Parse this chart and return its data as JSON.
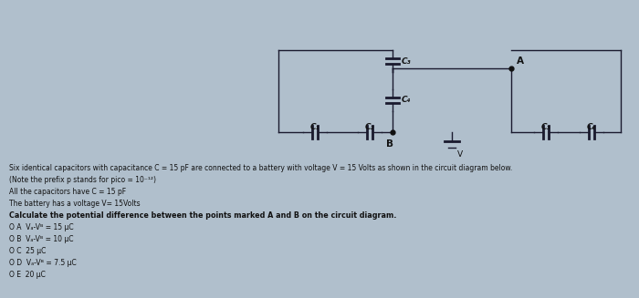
{
  "background_color": "#b0bfcc",
  "circuit": {
    "line_color": "#1a1a2e",
    "text_color": "#111111",
    "dot_color": "#111111"
  },
  "body_lines": [
    "Six identical capacitors with capacitance C = 15 pF are connected to a battery with voltage V = 15 Volts as shown in the circuit diagram below.",
    "(Note the prefix p stands for pico = 10⁻¹²)",
    "All the capacitors have C = 15 pF",
    "The battery has a voltage V= 15Volts",
    "Calculate the potential difference between the points marked A and B on the circuit diagram.",
    "O A  Vₐ-Vᴮ = 15 μC",
    "O B  Vₐ-Vᴮ = 10 μC",
    "O C  25 μC",
    "O D  Vₐ-Vᴮ = 7.5 μC",
    "O E  20 μC"
  ],
  "bold_line_index": 4
}
